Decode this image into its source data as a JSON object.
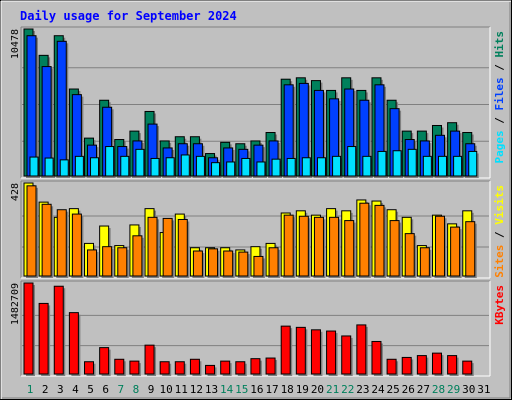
{
  "title": "Daily usage for September 2024",
  "colors": {
    "background": "#c0c0c0",
    "hits": "#00805c",
    "files": "#0040ff",
    "pages": "#00e0ff",
    "visits": "#ffff00",
    "sites": "#ff8000",
    "kbytes": "#ff0000",
    "title": "#0000ff",
    "weekend": "#00805c",
    "weekday": "#0000ff"
  },
  "chart_data": [
    {
      "type": "bar",
      "panel": "hits-files-pages",
      "ylabel_max": "10478",
      "legend": [
        "Pages",
        "Files",
        "Hits"
      ],
      "ylim": [
        0,
        10478
      ],
      "categories": [
        "1",
        "2",
        "3",
        "4",
        "5",
        "6",
        "7",
        "8",
        "9",
        "10",
        "11",
        "12",
        "13",
        "14",
        "15",
        "16",
        "17",
        "18",
        "19",
        "20",
        "21",
        "22",
        "23",
        "24",
        "25",
        "26",
        "27",
        "28",
        "29",
        "30",
        "31"
      ],
      "series": [
        {
          "name": "Hits",
          "values": [
            10478,
            8600,
            10000,
            6200,
            2700,
            5400,
            2600,
            3200,
            4600,
            2500,
            2800,
            2800,
            1600,
            2400,
            2300,
            2500,
            3100,
            6900,
            7000,
            6800,
            6100,
            7000,
            6100,
            7000,
            5400,
            3200,
            3200,
            3600,
            3800,
            3100,
            0
          ]
        },
        {
          "name": "Files",
          "values": [
            10000,
            7800,
            9600,
            5800,
            2200,
            4900,
            2100,
            2500,
            3700,
            2000,
            2300,
            2300,
            1300,
            2000,
            1900,
            2200,
            2500,
            6500,
            6600,
            6100,
            5500,
            6200,
            5400,
            6500,
            4800,
            2600,
            2500,
            2900,
            3200,
            2300,
            0
          ]
        },
        {
          "name": "Pages",
          "values": [
            1350,
            1280,
            1150,
            1400,
            1300,
            2100,
            1400,
            1900,
            1250,
            1300,
            1500,
            1400,
            950,
            1000,
            1250,
            1000,
            1200,
            1250,
            1300,
            1300,
            1400,
            2100,
            1400,
            1750,
            1800,
            1900,
            1400,
            1400,
            1400,
            1750,
            0
          ]
        }
      ]
    },
    {
      "type": "bar",
      "panel": "visits-sites",
      "ylabel_max": "428",
      "legend": [
        "Sites",
        "Visits"
      ],
      "ylim": [
        0,
        428
      ],
      "categories": [
        "1",
        "2",
        "3",
        "4",
        "5",
        "6",
        "7",
        "8",
        "9",
        "10",
        "11",
        "12",
        "13",
        "14",
        "15",
        "16",
        "17",
        "18",
        "19",
        "20",
        "21",
        "22",
        "23",
        "24",
        "25",
        "26",
        "27",
        "28",
        "29",
        "30",
        "31"
      ],
      "series": [
        {
          "name": "Visits",
          "values": [
            428,
            340,
            270,
            310,
            150,
            230,
            140,
            235,
            310,
            200,
            285,
            130,
            130,
            130,
            120,
            135,
            150,
            290,
            300,
            280,
            310,
            300,
            350,
            345,
            305,
            270,
            140,
            280,
            240,
            300,
            0
          ]
        },
        {
          "name": "Sites",
          "values": [
            415,
            330,
            305,
            285,
            120,
            135,
            130,
            185,
            270,
            265,
            260,
            115,
            125,
            115,
            110,
            90,
            130,
            280,
            275,
            270,
            270,
            255,
            335,
            325,
            255,
            195,
            130,
            275,
            225,
            250,
            0
          ]
        }
      ]
    },
    {
      "type": "bar",
      "panel": "kbytes",
      "ylabel_max": "1482709",
      "legend": [
        "KBytes"
      ],
      "ylim": [
        0,
        1482709
      ],
      "categories": [
        "1",
        "2",
        "3",
        "4",
        "5",
        "6",
        "7",
        "8",
        "9",
        "10",
        "11",
        "12",
        "13",
        "14",
        "15",
        "16",
        "17",
        "18",
        "19",
        "20",
        "21",
        "22",
        "23",
        "24",
        "25",
        "26",
        "27",
        "28",
        "29",
        "30",
        "31"
      ],
      "series": [
        {
          "name": "KBytes",
          "values": [
            1482709,
            1150000,
            1430000,
            1000000,
            200000,
            430000,
            240000,
            210000,
            470000,
            200000,
            200000,
            240000,
            140000,
            210000,
            200000,
            250000,
            260000,
            780000,
            760000,
            720000,
            700000,
            620000,
            800000,
            530000,
            240000,
            270000,
            300000,
            340000,
            300000,
            210000,
            0
          ]
        }
      ]
    }
  ],
  "x_labels": [
    "1",
    "2",
    "3",
    "4",
    "5",
    "6",
    "7",
    "8",
    "9",
    "10",
    "11",
    "12",
    "13",
    "14",
    "15",
    "16",
    "17",
    "18",
    "19",
    "20",
    "21",
    "22",
    "23",
    "24",
    "25",
    "26",
    "27",
    "28",
    "29",
    "30",
    "31"
  ],
  "weekend_days": [
    1,
    7,
    8,
    14,
    15,
    21,
    22,
    28,
    29
  ]
}
